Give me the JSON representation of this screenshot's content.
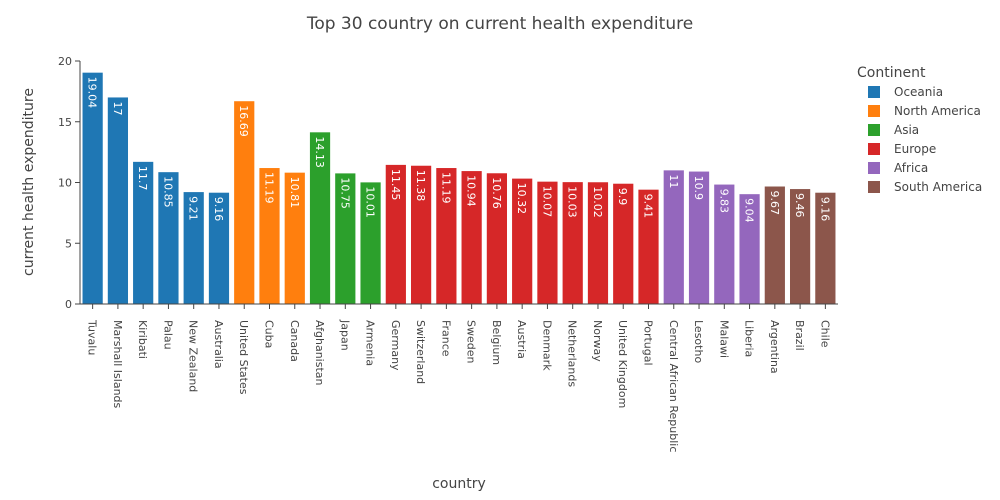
{
  "chart_data": {
    "type": "bar",
    "title": "Top 30 country on current health expenditure",
    "xlabel": "country",
    "ylabel": "current health expenditure",
    "ylim": [
      0,
      20
    ],
    "yticks": [
      0,
      5,
      10,
      15,
      20
    ],
    "grid": false,
    "legend_title": "Continent",
    "legend_position": "right",
    "series": [
      {
        "name": "Oceania",
        "color": "#1f77b4",
        "categories": [
          "Tuvalu",
          "Marshall Islands",
          "Kiribati",
          "Palau",
          "New Zealand",
          "Australia"
        ],
        "values": [
          19.04,
          17,
          11.7,
          10.85,
          9.21,
          9.16
        ],
        "labels": [
          "19.04",
          "17",
          "11.7",
          "10.85",
          "9.21",
          "9.16"
        ]
      },
      {
        "name": "North America",
        "color": "#ff7f0e",
        "categories": [
          "United States",
          "Cuba",
          "Canada"
        ],
        "values": [
          16.69,
          11.19,
          10.81
        ],
        "labels": [
          "16.69",
          "11.19",
          "10.81"
        ]
      },
      {
        "name": "Asia",
        "color": "#2ca02c",
        "categories": [
          "Afghanistan",
          "Japan",
          "Armenia"
        ],
        "values": [
          14.13,
          10.75,
          10.01
        ],
        "labels": [
          "14.13",
          "10.75",
          "10.01"
        ]
      },
      {
        "name": "Europe",
        "color": "#d62728",
        "categories": [
          "Germany",
          "Switzerland",
          "France",
          "Sweden",
          "Belgium",
          "Austria",
          "Denmark",
          "Netherlands",
          "Norway",
          "United Kingdom",
          "Portugal"
        ],
        "values": [
          11.45,
          11.38,
          11.19,
          10.94,
          10.76,
          10.32,
          10.07,
          10.03,
          10.02,
          9.9,
          9.41
        ],
        "labels": [
          "11.45",
          "11.38",
          "11.19",
          "10.94",
          "10.76",
          "10.32",
          "10.07",
          "10.03",
          "10.02",
          "9.9",
          "9.41"
        ]
      },
      {
        "name": "Africa",
        "color": "#9467bd",
        "categories": [
          "Central African Republic",
          "Lesotho",
          "Malawi",
          "Liberia"
        ],
        "values": [
          11,
          10.9,
          9.83,
          9.04
        ],
        "labels": [
          "11",
          "10.9",
          "9.83",
          "9.04"
        ]
      },
      {
        "name": "South America",
        "color": "#8c564b",
        "categories": [
          "Argentina",
          "Brazil",
          "Chile"
        ],
        "values": [
          9.67,
          9.46,
          9.16
        ],
        "labels": [
          "9.67",
          "9.46",
          "9.16"
        ]
      }
    ]
  }
}
